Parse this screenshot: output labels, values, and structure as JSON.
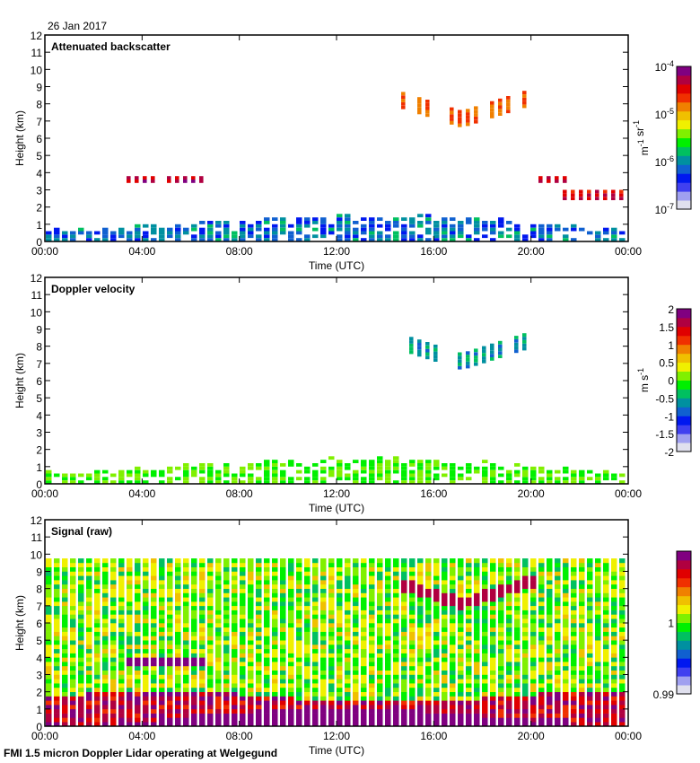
{
  "date_label": "26 Jan 2017",
  "footer": "FMI 1.5 micron Doppler Lidar operating at Welgegund",
  "colors": {
    "colormap": [
      "#e0e0ee",
      "#a0a0f0",
      "#4040f0",
      "#0018f0",
      "#1060d0",
      "#0090a0",
      "#00c060",
      "#00f000",
      "#80f000",
      "#f0f000",
      "#f0c000",
      "#f08000",
      "#f03000",
      "#e00000",
      "#b00040",
      "#800080"
    ]
  },
  "chart_data": [
    {
      "type": "heatmap",
      "title": "Attenuated backscatter",
      "xlabel": "Time (UTC)",
      "ylabel": "Height (km)",
      "xlim": [
        0,
        24
      ],
      "ylim": [
        0,
        12
      ],
      "x_ticks": [
        "00:00",
        "04:00",
        "08:00",
        "12:00",
        "16:00",
        "20:00",
        "00:00"
      ],
      "y_ticks": [
        "0",
        "1",
        "2",
        "3",
        "4",
        "5",
        "6",
        "7",
        "8",
        "9",
        "10",
        "11",
        "12"
      ],
      "colorbar": {
        "label": "m-1 sr-1",
        "scale": "log",
        "range": [
          1e-07,
          0.0001
        ],
        "ticks": [
          "10-7",
          "10-6",
          "10-5",
          "10-4"
        ]
      },
      "features": [
        {
          "name": "boundary layer aerosol",
          "time": [
            0,
            24
          ],
          "height": [
            0,
            2
          ],
          "level": 0.3
        },
        {
          "name": "cloud layer ~3.6 km",
          "time": [
            3.3,
            6.7
          ],
          "height": [
            3.4,
            3.8
          ],
          "level": 0.9
        },
        {
          "name": "cirrus",
          "time": [
            14.6,
            20.3
          ],
          "height": [
            6.4,
            9.4
          ],
          "level": 0.75
        },
        {
          "name": "cloud layer ~3.6 km (late)",
          "time": [
            19.8,
            21.5
          ],
          "height": [
            3.4,
            3.7
          ],
          "level": 0.9
        },
        {
          "name": "cloud layer ~2.7 km",
          "time": [
            21.3,
            24
          ],
          "height": [
            2.4,
            3.0
          ],
          "level": 0.85
        }
      ]
    },
    {
      "type": "heatmap",
      "title": "Doppler velocity",
      "xlabel": "Time (UTC)",
      "ylabel": "Height (km)",
      "xlim": [
        0,
        24
      ],
      "ylim": [
        0,
        12
      ],
      "x_ticks": [
        "00:00",
        "04:00",
        "08:00",
        "12:00",
        "16:00",
        "20:00",
        "00:00"
      ],
      "y_ticks": [
        "0",
        "1",
        "2",
        "3",
        "4",
        "5",
        "6",
        "7",
        "8",
        "9",
        "10",
        "11",
        "12"
      ],
      "colorbar": {
        "label": "m s-1",
        "scale": "linear",
        "range": [
          -2,
          2
        ],
        "ticks": [
          "-2",
          "-1.5",
          "-1",
          "-0.5",
          "0",
          "0.5",
          "1",
          "1.5",
          "2"
        ]
      },
      "features": [
        {
          "name": "boundary layer",
          "time": [
            0,
            24
          ],
          "height": [
            0,
            2
          ],
          "velocity": 0.0
        },
        {
          "name": "cirrus fall streaks",
          "time": [
            14.6,
            20.3
          ],
          "height": [
            6.4,
            9.4
          ],
          "velocity": -1.0
        }
      ]
    },
    {
      "type": "heatmap",
      "title": "Signal (raw)",
      "xlabel": "Time (UTC)",
      "ylabel": "Height (km)",
      "xlim": [
        0,
        24
      ],
      "ylim": [
        0,
        12
      ],
      "x_ticks": [
        "00:00",
        "04:00",
        "08:00",
        "12:00",
        "16:00",
        "20:00",
        "00:00"
      ],
      "y_ticks": [
        "0",
        "1",
        "2",
        "3",
        "4",
        "5",
        "6",
        "7",
        "8",
        "9",
        "10",
        "11",
        "12"
      ],
      "colorbar": {
        "label": "",
        "scale": "linear",
        "range": [
          0.99,
          1.01
        ],
        "ticks": [
          "0.99",
          "1"
        ]
      },
      "data_top_km": 9.6,
      "features": [
        {
          "name": "noise background",
          "time": [
            0,
            24
          ],
          "height": [
            0,
            9.6
          ],
          "level": 0.45
        },
        {
          "name": "boundary layer",
          "time": [
            0,
            24
          ],
          "height": [
            0,
            2
          ],
          "level": 0.9
        }
      ]
    }
  ]
}
